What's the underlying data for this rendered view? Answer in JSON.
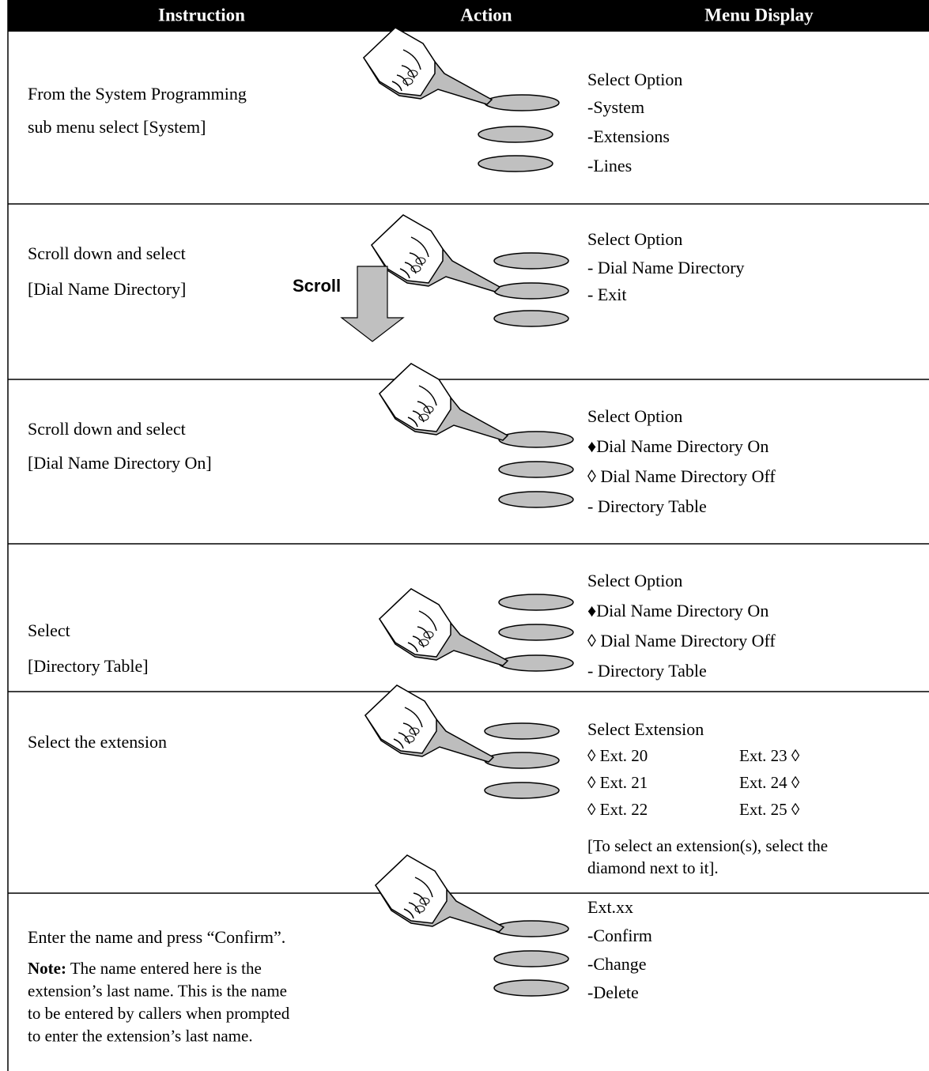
{
  "header": {
    "instruction": "Instruction",
    "action": "Action",
    "menu_display": "Menu Display"
  },
  "rows": [
    {
      "instruction": [
        "From the System Programming",
        "sub menu select [System]"
      ],
      "menu": [
        "Select Option",
        "-System",
        "-Extensions",
        "-Lines"
      ]
    },
    {
      "instruction": [
        "Scroll down and select",
        "[Dial Name Directory]"
      ],
      "action_label": "Scroll",
      "menu": [
        "Select Option",
        "- Dial Name Directory",
        "-  Exit"
      ]
    },
    {
      "instruction": [
        "Scroll down and select",
        "[Dial Name Directory On]"
      ],
      "menu": [
        "Select Option",
        "♦Dial Name Directory On",
        "◊ Dial Name Directory Off",
        "- Directory Table"
      ]
    },
    {
      "instruction": [
        "Select",
        "[Directory Table]"
      ],
      "menu": [
        "Select Option",
        "♦Dial Name Directory On",
        "◊ Dial Name Directory Off",
        "- Directory Table"
      ]
    },
    {
      "instruction": [
        "Select the extension"
      ],
      "menu": [
        "Select Extension"
      ],
      "extensions": [
        [
          "◊ Ext. 20",
          "Ext. 23 ◊"
        ],
        [
          "◊ Ext. 21",
          "Ext. 24 ◊"
        ],
        [
          "◊ Ext. 22",
          "Ext. 25 ◊"
        ]
      ],
      "menu_note": [
        "[To select an extension(s), select the",
        "diamond next to it]."
      ]
    },
    {
      "instruction": [
        "Enter the name and press “Confirm”."
      ],
      "note_label": "Note:",
      "note": [
        "The name entered here is the",
        "extension’s last name. This is the name",
        "to be entered by callers when prompted",
        "to enter the extension’s last name."
      ],
      "menu": [
        "Ext.xx",
        "-Confirm",
        "-Change",
        "-Delete"
      ]
    }
  ]
}
